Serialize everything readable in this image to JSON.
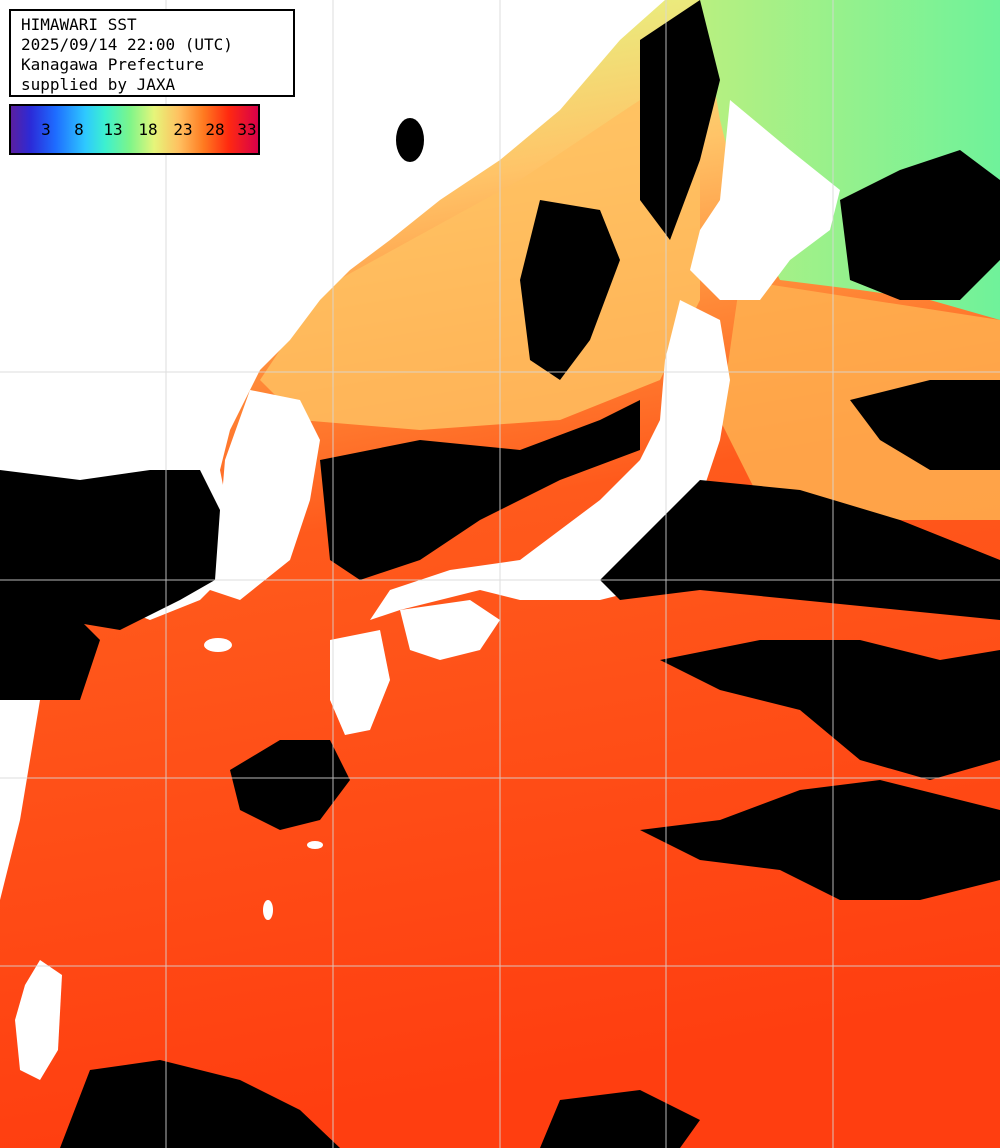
{
  "header": {
    "line1": "HIMAWARI SST",
    "line2": "2025/09/14 22:00 (UTC)",
    "line3": "Kanagawa Prefecture",
    "line4": "supplied by JAXA"
  },
  "legend": {
    "ticks": [
      "3",
      "8",
      "13",
      "18",
      "23",
      "28",
      "33"
    ]
  },
  "colors": {
    "cloud": "#000000",
    "land": "#ffffff",
    "warm_sea": "#ff4a12",
    "mid_sea": "#ffa040",
    "cool_sea": "#e6f07a",
    "cold_sea": "#7cf58a",
    "grid": "#d8d8d8"
  }
}
